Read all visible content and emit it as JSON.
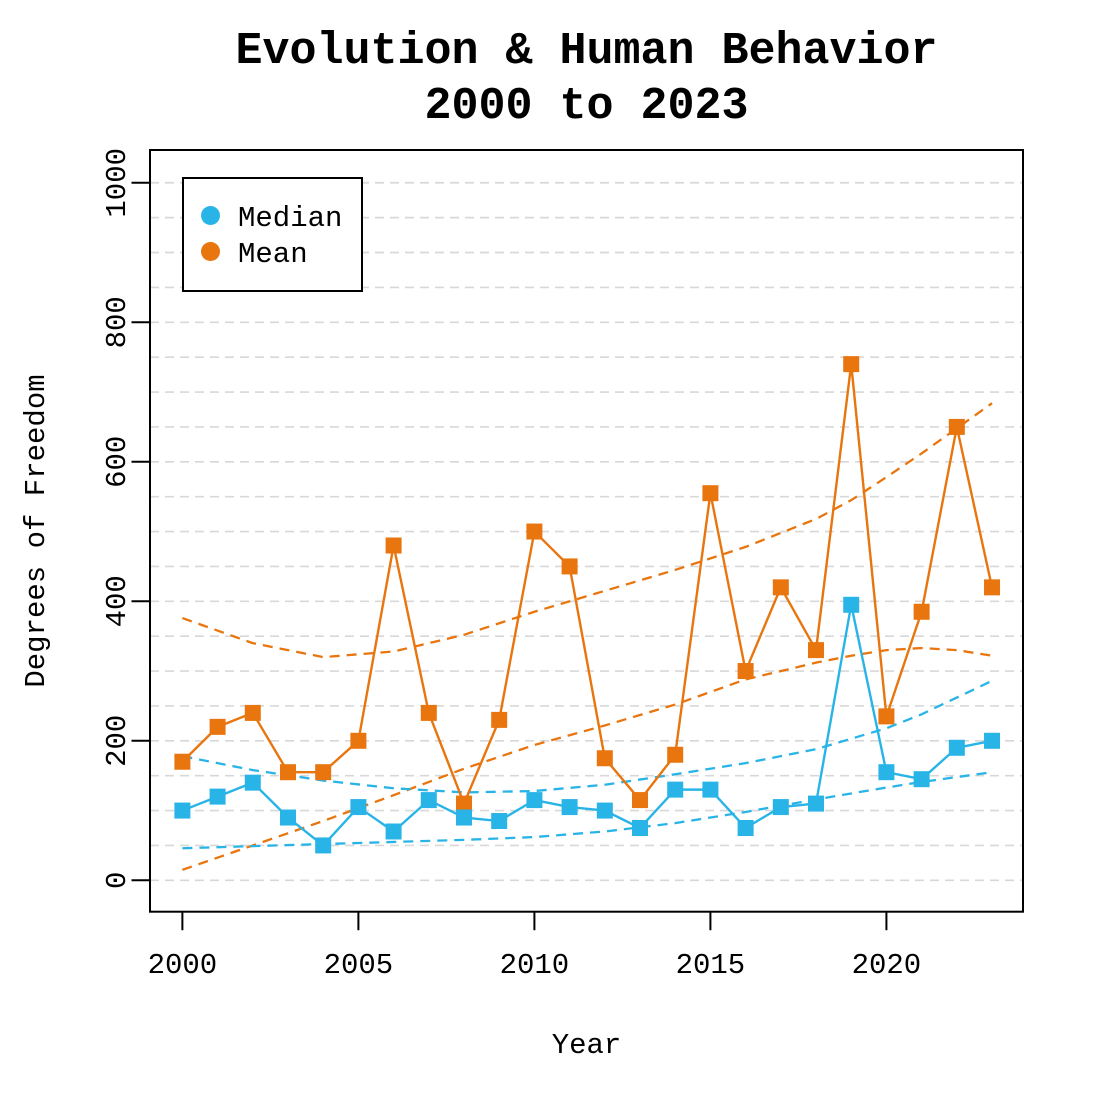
{
  "title": {
    "line1": "Evolution & Human Behavior",
    "line2": "2000 to 2023"
  },
  "axes": {
    "x_label": "Year",
    "y_label": "Degrees of Freedom",
    "x_tick_labels": [
      "2000",
      "2005",
      "2010",
      "2015",
      "2020"
    ],
    "y_tick_labels": [
      "0",
      "200",
      "400",
      "600",
      "800",
      "1000"
    ]
  },
  "legend": {
    "items": [
      {
        "label": "Median",
        "color": "#29B4E8"
      },
      {
        "label": "Mean",
        "color": "#E8750E"
      }
    ]
  },
  "colors": {
    "grid": "#D8D8D8",
    "axis": "#000000",
    "background": "#FFFFFF"
  },
  "chart_data": {
    "type": "line",
    "title": "Evolution & Human Behavior 2000 to 2023",
    "xlabel": "Year",
    "ylabel": "Degrees of Freedom",
    "x": [
      2000,
      2001,
      2002,
      2003,
      2004,
      2005,
      2006,
      2007,
      2008,
      2009,
      2010,
      2011,
      2012,
      2013,
      2014,
      2015,
      2016,
      2017,
      2018,
      2019,
      2020,
      2021,
      2022,
      2023
    ],
    "series": [
      {
        "name": "Median",
        "color": "#29B4E8",
        "marker": "square",
        "values": [
          100,
          120,
          140,
          90,
          50,
          105,
          70,
          115,
          90,
          85,
          115,
          105,
          100,
          75,
          130,
          130,
          75,
          105,
          110,
          395,
          155,
          145,
          190,
          200
        ]
      },
      {
        "name": "Mean",
        "color": "#E8750E",
        "marker": "square",
        "values": [
          170,
          220,
          240,
          155,
          155,
          200,
          480,
          240,
          110,
          230,
          500,
          450,
          175,
          115,
          180,
          555,
          300,
          420,
          330,
          740,
          235,
          385,
          650,
          420
        ]
      }
    ],
    "trend_bands": [
      {
        "series": "Mean",
        "position": "upper",
        "style": "dashed",
        "color": "#E8750E",
        "points": [
          [
            2000,
            376
          ],
          [
            2002,
            340
          ],
          [
            2004,
            320
          ],
          [
            2006,
            328
          ],
          [
            2008,
            352
          ],
          [
            2010,
            385
          ],
          [
            2012,
            415
          ],
          [
            2014,
            445
          ],
          [
            2016,
            478
          ],
          [
            2018,
            518
          ],
          [
            2019,
            545
          ],
          [
            2020,
            578
          ],
          [
            2021,
            612
          ],
          [
            2022,
            648
          ],
          [
            2023,
            684
          ]
        ]
      },
      {
        "series": "Mean",
        "position": "lower",
        "style": "dashed",
        "color": "#E8750E",
        "points": [
          [
            2000,
            15
          ],
          [
            2002,
            50
          ],
          [
            2004,
            85
          ],
          [
            2006,
            122
          ],
          [
            2008,
            160
          ],
          [
            2010,
            194
          ],
          [
            2012,
            222
          ],
          [
            2014,
            252
          ],
          [
            2016,
            288
          ],
          [
            2018,
            312
          ],
          [
            2019,
            322
          ],
          [
            2020,
            330
          ],
          [
            2021,
            333
          ],
          [
            2022,
            330
          ],
          [
            2023,
            322
          ]
        ]
      },
      {
        "series": "Median",
        "position": "upper",
        "style": "dashed",
        "color": "#29B4E8",
        "points": [
          [
            2000,
            178
          ],
          [
            2002,
            158
          ],
          [
            2004,
            143
          ],
          [
            2006,
            132
          ],
          [
            2008,
            126
          ],
          [
            2010,
            128
          ],
          [
            2012,
            137
          ],
          [
            2014,
            152
          ],
          [
            2016,
            168
          ],
          [
            2018,
            188
          ],
          [
            2020,
            218
          ],
          [
            2021,
            238
          ],
          [
            2022,
            262
          ],
          [
            2023,
            286
          ]
        ]
      },
      {
        "series": "Median",
        "position": "lower",
        "style": "dashed",
        "color": "#29B4E8",
        "points": [
          [
            2000,
            46
          ],
          [
            2002,
            49
          ],
          [
            2004,
            52
          ],
          [
            2006,
            55
          ],
          [
            2008,
            58
          ],
          [
            2010,
            62
          ],
          [
            2012,
            70
          ],
          [
            2014,
            82
          ],
          [
            2016,
            98
          ],
          [
            2018,
            116
          ],
          [
            2020,
            133
          ],
          [
            2021,
            141
          ],
          [
            2022,
            148
          ],
          [
            2023,
            155
          ]
        ]
      }
    ],
    "x_ticks": [
      2000,
      2005,
      2010,
      2015,
      2020
    ],
    "y_ticks": [
      0,
      200,
      400,
      600,
      800,
      1000
    ],
    "xlim": [
      1999.08,
      2023.88
    ],
    "ylim": [
      -45,
      1047
    ],
    "grid": {
      "horizontal_step": 50,
      "range": [
        0,
        1000
      ],
      "style": "dashed",
      "color": "#D8D8D8"
    },
    "legend_position": "topleft"
  }
}
